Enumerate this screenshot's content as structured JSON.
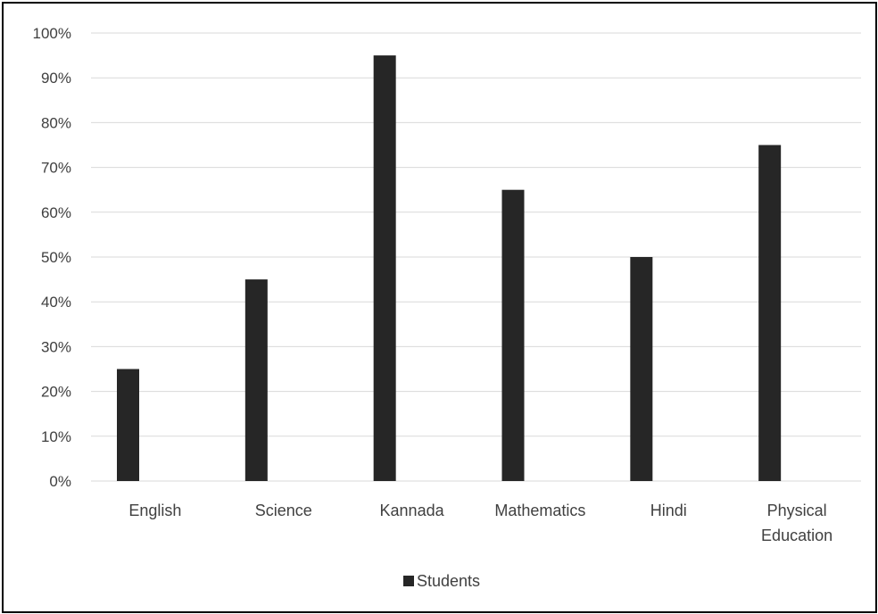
{
  "chart_data": {
    "type": "bar",
    "categories": [
      "English",
      "Science",
      "Kannada",
      "Mathematics",
      "Hindi",
      "Physical Education"
    ],
    "series": [
      {
        "name": "Students",
        "values": [
          0.25,
          0.45,
          0.95,
          0.65,
          0.5,
          0.75
        ]
      }
    ],
    "ylim": [
      0,
      1
    ],
    "y_ticks": [
      "0%",
      "10%",
      "20%",
      "30%",
      "40%",
      "50%",
      "60%",
      "70%",
      "80%",
      "90%",
      "100%"
    ],
    "grid": true,
    "legend_position": "bottom",
    "bar_color": "#262626",
    "title": "",
    "xlabel": "",
    "ylabel": ""
  }
}
